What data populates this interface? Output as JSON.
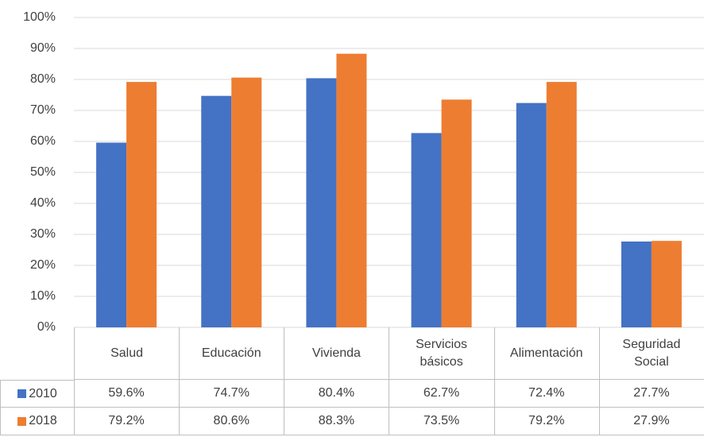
{
  "chart_data": {
    "type": "bar",
    "categories": [
      "Salud",
      "Educación",
      "Vivienda",
      "Servicios básicos",
      "Alimentación",
      "Seguridad Social"
    ],
    "series": [
      {
        "name": "2010",
        "color": "#4472c4",
        "values": [
          59.6,
          74.7,
          80.4,
          62.7,
          72.4,
          27.7
        ],
        "value_labels": [
          "59.6%",
          "74.7%",
          "80.4%",
          "62.7%",
          "72.4%",
          "27.7%"
        ]
      },
      {
        "name": "2018",
        "color": "#ed7d31",
        "values": [
          79.2,
          80.6,
          88.3,
          73.5,
          79.2,
          27.9
        ],
        "value_labels": [
          "79.2%",
          "80.6%",
          "88.3%",
          "73.5%",
          "79.2%",
          "27.9%"
        ]
      }
    ],
    "ylim": [
      0,
      100
    ],
    "yticks": [
      {
        "value": 0,
        "label": "0%"
      },
      {
        "value": 10,
        "label": "10%"
      },
      {
        "value": 20,
        "label": "20%"
      },
      {
        "value": 30,
        "label": "30%"
      },
      {
        "value": 40,
        "label": "40%"
      },
      {
        "value": 50,
        "label": "50%"
      },
      {
        "value": 60,
        "label": "60%"
      },
      {
        "value": 70,
        "label": "70%"
      },
      {
        "value": 80,
        "label": "80%"
      },
      {
        "value": 90,
        "label": "90%"
      },
      {
        "value": 100,
        "label": "100%"
      }
    ],
    "grid": true
  }
}
